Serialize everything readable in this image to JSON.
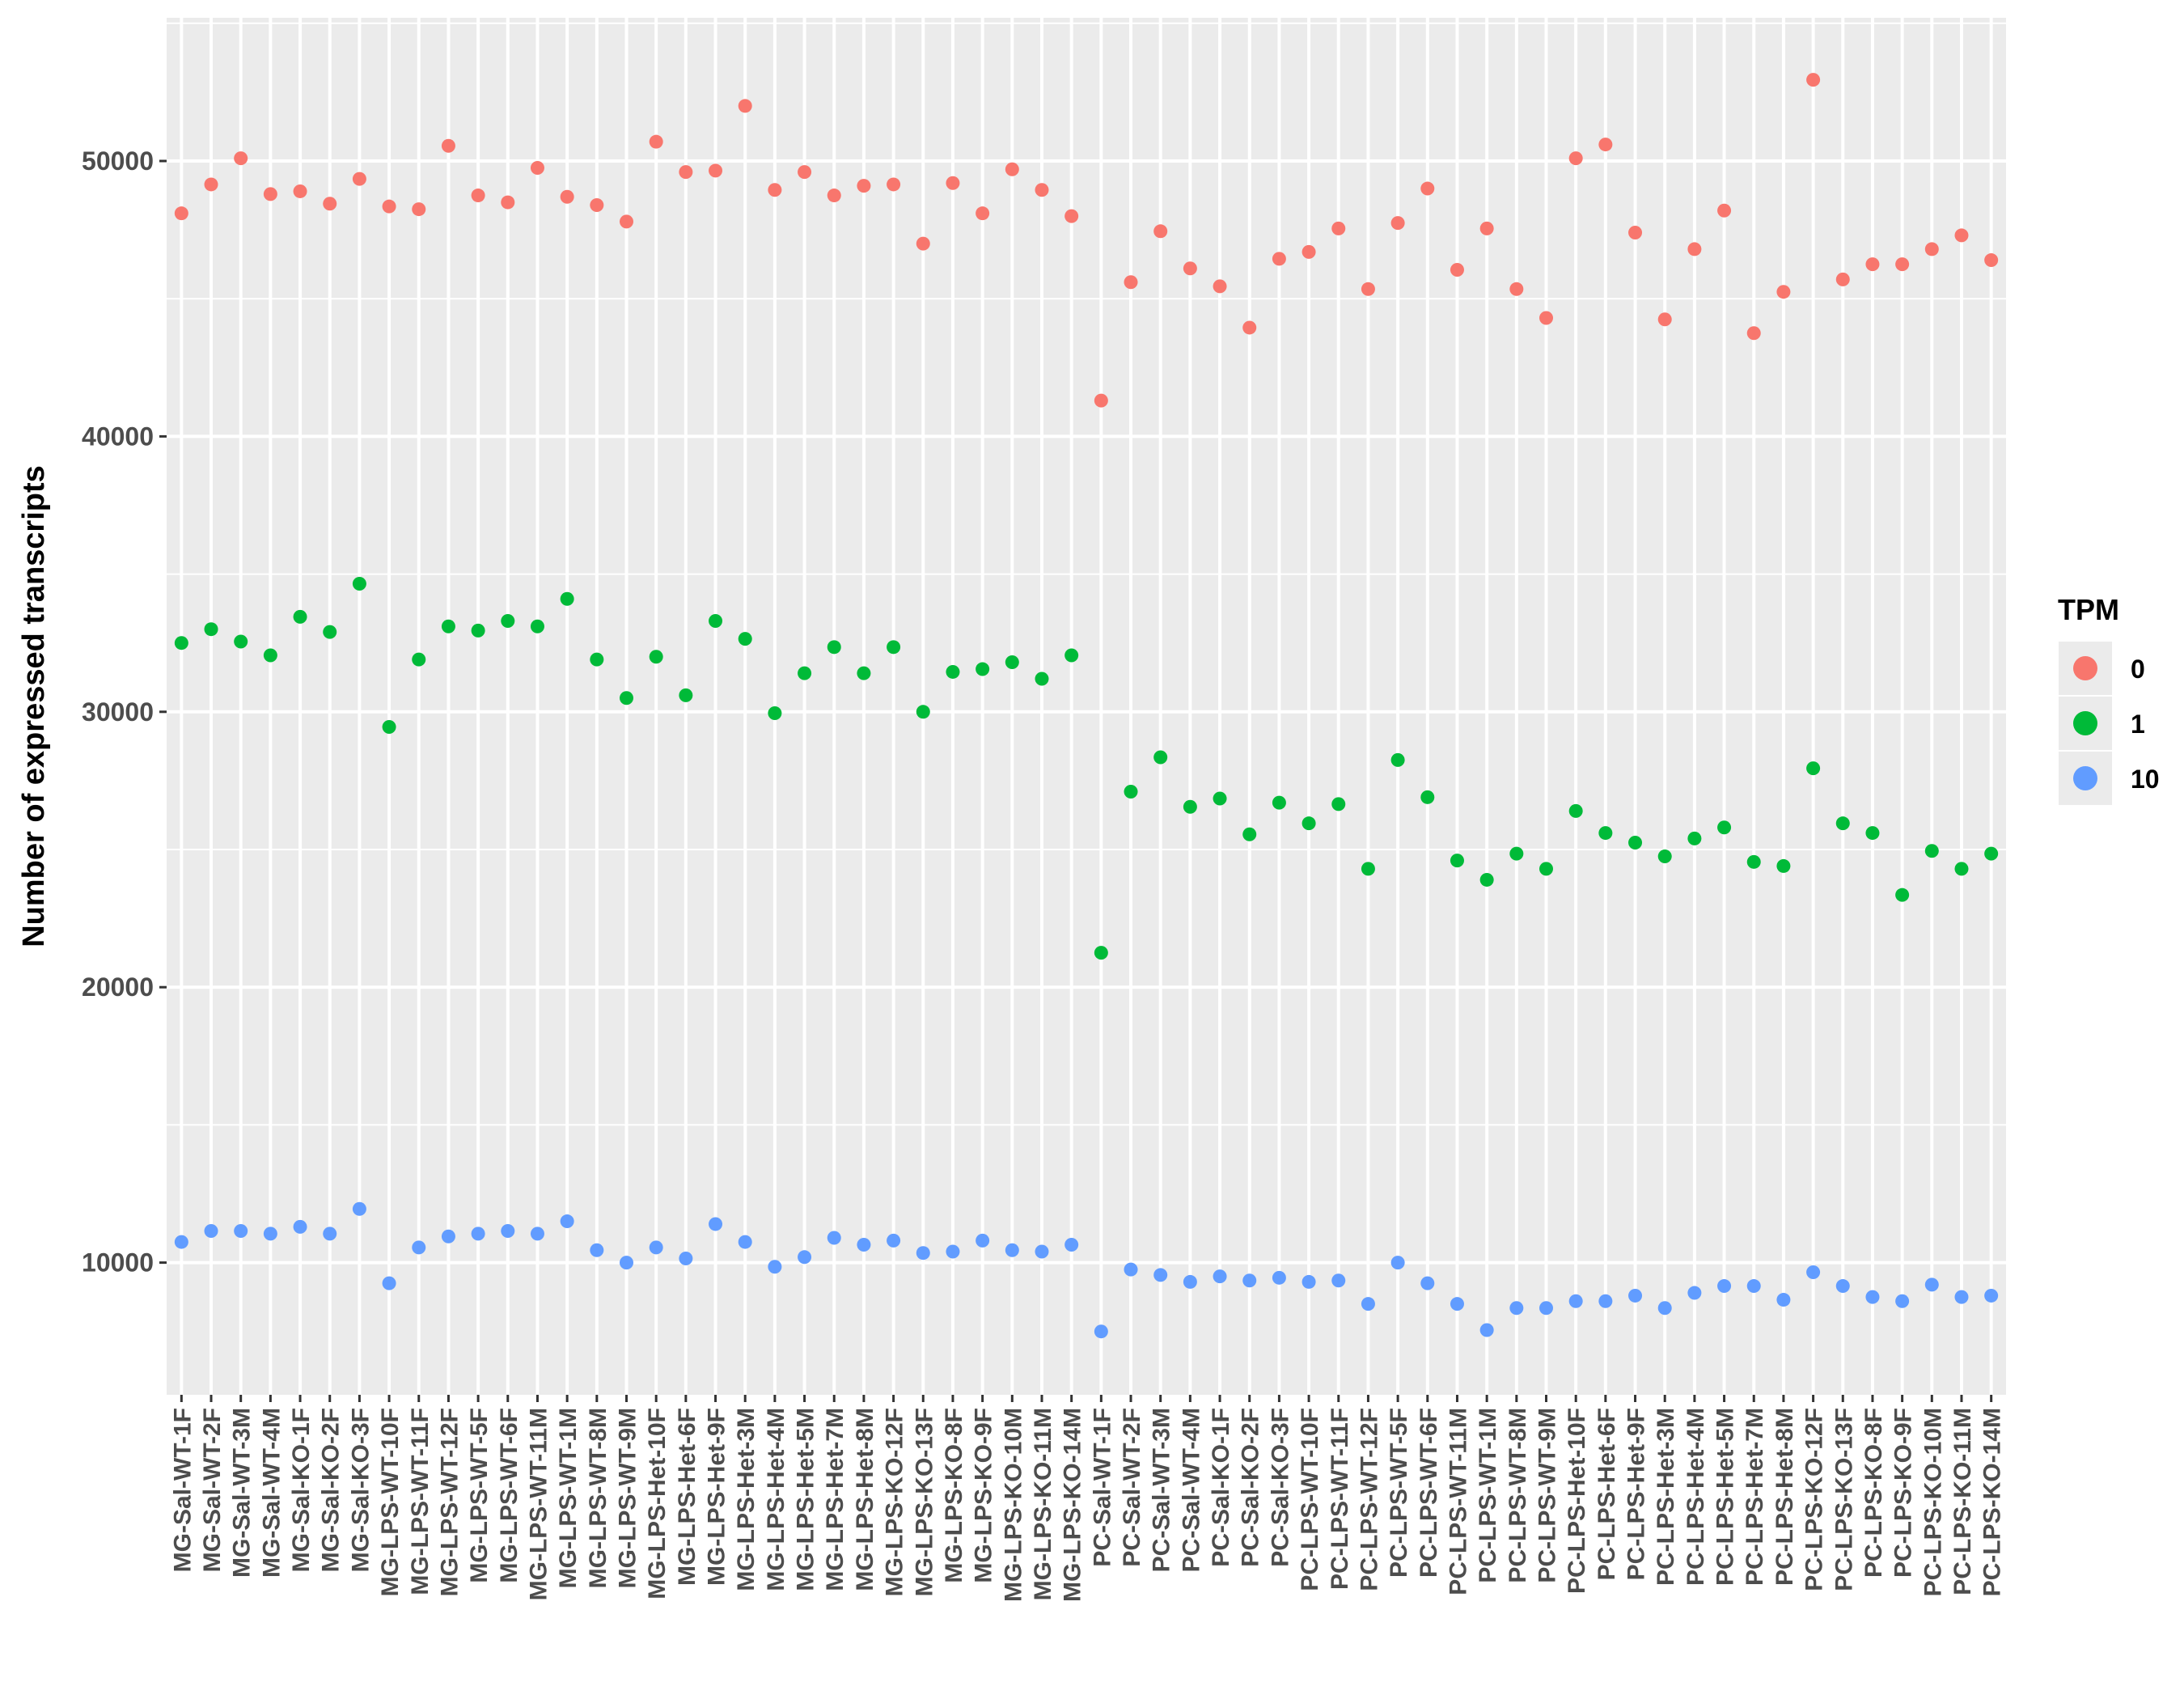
{
  "chart_data": {
    "type": "scatter",
    "ylabel": "Number of expressed transcripts",
    "xlabel": "",
    "ylim": [
      5200,
      55200
    ],
    "yticks": [
      10000,
      20000,
      30000,
      40000,
      50000
    ],
    "grid": true,
    "legend": {
      "title": "TPM",
      "position": "right"
    },
    "categories": [
      "MG-Sal-WT-1F",
      "MG-Sal-WT-2F",
      "MG-Sal-WT-3M",
      "MG-Sal-WT-4M",
      "MG-Sal-KO-1F",
      "MG-Sal-KO-2F",
      "MG-Sal-KO-3F",
      "MG-LPS-WT-10F",
      "MG-LPS-WT-11F",
      "MG-LPS-WT-12F",
      "MG-LPS-WT-5F",
      "MG-LPS-WT-6F",
      "MG-LPS-WT-11M",
      "MG-LPS-WT-1M",
      "MG-LPS-WT-8M",
      "MG-LPS-WT-9M",
      "MG-LPS-Het-10F",
      "MG-LPS-Het-6F",
      "MG-LPS-Het-9F",
      "MG-LPS-Het-3M",
      "MG-LPS-Het-4M",
      "MG-LPS-Het-5M",
      "MG-LPS-Het-7M",
      "MG-LPS-Het-8M",
      "MG-LPS-KO-12F",
      "MG-LPS-KO-13F",
      "MG-LPS-KO-8F",
      "MG-LPS-KO-9F",
      "MG-LPS-KO-10M",
      "MG-LPS-KO-11M",
      "MG-LPS-KO-14M",
      "PC-Sal-WT-1F",
      "PC-Sal-WT-2F",
      "PC-Sal-WT-3M",
      "PC-Sal-WT-4M",
      "PC-Sal-KO-1F",
      "PC-Sal-KO-2F",
      "PC-Sal-KO-3F",
      "PC-LPS-WT-10F",
      "PC-LPS-WT-11F",
      "PC-LPS-WT-12F",
      "PC-LPS-WT-5F",
      "PC-LPS-WT-6F",
      "PC-LPS-WT-11M",
      "PC-LPS-WT-1M",
      "PC-LPS-WT-8M",
      "PC-LPS-WT-9M",
      "PC-LPS-Het-10F",
      "PC-LPS-Het-6F",
      "PC-LPS-Het-9F",
      "PC-LPS-Het-3M",
      "PC-LPS-Het-4M",
      "PC-LPS-Het-5M",
      "PC-LPS-Het-7M",
      "PC-LPS-Het-8M",
      "PC-LPS-KO-12F",
      "PC-LPS-KO-13F",
      "PC-LPS-KO-8F",
      "PC-LPS-KO-9F",
      "PC-LPS-KO-10M",
      "PC-LPS-KO-11M",
      "PC-LPS-KO-14M"
    ],
    "series": [
      {
        "name": "0",
        "color": "#F8766D",
        "values": [
          48100,
          49150,
          50100,
          48800,
          48900,
          48450,
          49350,
          48350,
          48250,
          50550,
          48750,
          48500,
          49750,
          48700,
          48400,
          47800,
          50700,
          49600,
          49650,
          52000,
          48950,
          49600,
          48750,
          49100,
          49150,
          47000,
          49200,
          48100,
          49700,
          48950,
          48000,
          41300,
          45600,
          47450,
          46100,
          45450,
          43950,
          46450,
          46700,
          47550,
          45350,
          47750,
          49000,
          46050,
          47550,
          45350,
          44300,
          50100,
          50600,
          47400,
          44250,
          46800,
          48200,
          43750,
          45250,
          52950,
          45700,
          46250,
          46250,
          46800,
          47300,
          46400
        ]
      },
      {
        "name": "1",
        "color": "#00BA38",
        "values": [
          32500,
          33000,
          32550,
          32050,
          33450,
          32900,
          34650,
          29450,
          31900,
          33100,
          32950,
          33300,
          33100,
          34100,
          31900,
          30500,
          32000,
          30600,
          33300,
          32650,
          29950,
          31400,
          32350,
          31400,
          32350,
          30000,
          31450,
          31550,
          31800,
          31200,
          32050,
          21250,
          27100,
          28350,
          26550,
          26850,
          25550,
          26700,
          25950,
          26650,
          24300,
          28250,
          26900,
          24600,
          23900,
          24850,
          24300,
          26400,
          25600,
          25250,
          24750,
          25400,
          25800,
          24550,
          24400,
          27950,
          25950,
          25600,
          23350,
          24950,
          24300,
          24850
        ]
      },
      {
        "name": "10",
        "color": "#619CFF",
        "values": [
          10750,
          11150,
          11150,
          11050,
          11300,
          11050,
          11950,
          9250,
          10550,
          10950,
          11050,
          11150,
          11050,
          11500,
          10450,
          10000,
          10550,
          10150,
          11400,
          10750,
          9850,
          10200,
          10900,
          10650,
          10800,
          10350,
          10400,
          10800,
          10450,
          10400,
          10650,
          7500,
          9750,
          9550,
          9300,
          9500,
          9350,
          9450,
          9300,
          9350,
          8500,
          10000,
          9250,
          8500,
          7550,
          8350,
          8350,
          8600,
          8600,
          8800,
          8350,
          8900,
          9150,
          9150,
          8650,
          9650,
          9150,
          8750,
          8600,
          9200,
          8750,
          8800
        ]
      }
    ]
  }
}
